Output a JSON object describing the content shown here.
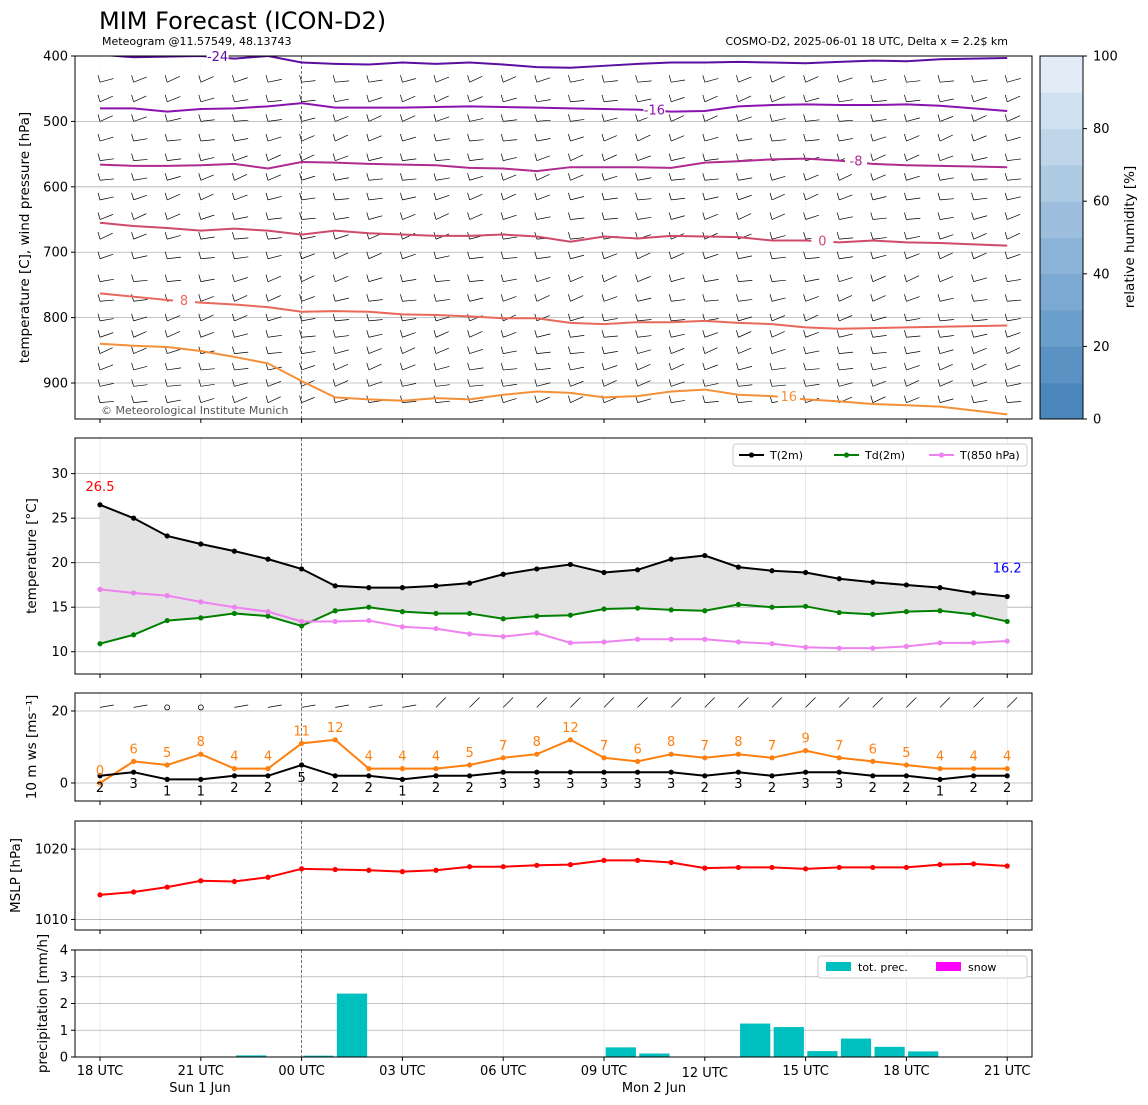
{
  "header": {
    "title": "MIM Forecast (ICON-D2)",
    "subtitle_left": "Meteogram @11.57549, 48.13743",
    "subtitle_right": "COSMO-D2, 2025-06-01 18 UTC, Delta x = 2.2$ km",
    "copyright": "© Meteorological Institute Munich"
  },
  "time_axis": {
    "tick_labels": [
      "18 UTC",
      "21 UTC",
      "00 UTC",
      "03 UTC",
      "06 UTC",
      "09 UTC",
      "12 UTC",
      "15 UTC",
      "18 UTC",
      "21 UTC"
    ],
    "date_labels": [
      "Sun 1 Jun",
      "Mon 2 Jun"
    ]
  },
  "chart_data": [
    {
      "type": "line",
      "panel": "upper-air",
      "ylabel": "temperature [C], wind pressure [hPa]",
      "yticks": [
        400,
        500,
        600,
        700,
        800,
        900
      ],
      "ylim": [
        955,
        400
      ],
      "colorbar": {
        "label": "relative humidity [%]",
        "ticks": [
          0,
          20,
          40,
          60,
          80,
          100
        ]
      },
      "isotherms": [
        {
          "label": "-24",
          "color": "#5a0fa0",
          "values": [
            398,
            402,
            401,
            400,
            404,
            400,
            410,
            412,
            413,
            410,
            412,
            410,
            413,
            417,
            418,
            415,
            412,
            410,
            410,
            409,
            410,
            411,
            409,
            407,
            408,
            405,
            404,
            403
          ]
        },
        {
          "label": "-16",
          "color": "#8a12b0",
          "values": [
            480,
            480,
            485,
            481,
            480,
            477,
            472,
            479,
            479,
            479,
            478,
            477,
            478,
            479,
            480,
            481,
            482,
            485,
            484,
            477,
            475,
            474,
            475,
            475,
            474,
            476,
            480,
            484
          ]
        },
        {
          "label": "-8",
          "color": "#b02b8f",
          "values": [
            566,
            568,
            568,
            567,
            565,
            572,
            562,
            563,
            565,
            566,
            567,
            571,
            572,
            576,
            570,
            570,
            570,
            571,
            563,
            561,
            558,
            557,
            560,
            565,
            567,
            568,
            569,
            570
          ]
        },
        {
          "label": "0",
          "color": "#cf4a6a",
          "values": [
            655,
            660,
            663,
            667,
            664,
            667,
            673,
            667,
            671,
            673,
            675,
            675,
            673,
            676,
            684,
            676,
            679,
            675,
            676,
            677,
            682,
            682,
            685,
            682,
            685,
            686,
            688,
            690
          ]
        },
        {
          "label": "8",
          "color": "#e8685a",
          "values": [
            763,
            768,
            773,
            777,
            780,
            784,
            791,
            790,
            791,
            795,
            796,
            798,
            801,
            801,
            808,
            810,
            807,
            807,
            805,
            808,
            810,
            815,
            817,
            816,
            815,
            814,
            813,
            812
          ]
        },
        {
          "label": "16",
          "color": "#f5903a",
          "values": [
            840,
            843,
            845,
            851,
            860,
            870,
            897,
            922,
            925,
            927,
            923,
            925,
            918,
            913,
            915,
            922,
            920,
            913,
            910,
            918,
            920,
            925,
            928,
            932,
            934,
            936,
            942,
            948
          ]
        }
      ]
    },
    {
      "type": "line",
      "panel": "temperature",
      "ylabel": "temperature [$^\\circ$C]",
      "ylim": [
        7.5,
        34
      ],
      "yticks": [
        10,
        15,
        20,
        25,
        30
      ],
      "annotations": {
        "max": "26.5",
        "min": "16.2"
      },
      "series": [
        {
          "name": "T(2m)",
          "color": "#000000",
          "values": [
            26.5,
            25.0,
            23.0,
            22.1,
            21.3,
            20.4,
            19.3,
            17.4,
            17.2,
            17.2,
            17.4,
            17.7,
            18.7,
            19.3,
            19.8,
            18.9,
            19.2,
            20.4,
            20.8,
            19.5,
            19.1,
            18.9,
            18.2,
            17.8,
            17.5,
            17.2,
            16.6,
            16.2
          ]
        },
        {
          "name": "Td(2m)",
          "color": "#008000",
          "values": [
            10.9,
            11.9,
            13.5,
            13.8,
            14.3,
            14.0,
            12.9,
            14.6,
            15.0,
            14.5,
            14.3,
            14.3,
            13.7,
            14.0,
            14.1,
            14.8,
            14.9,
            14.7,
            14.6,
            15.3,
            15.0,
            15.1,
            14.4,
            14.2,
            14.5,
            14.6,
            14.2,
            13.4
          ]
        },
        {
          "name": "T(850 hPa)",
          "color": "#ee82ee",
          "values": [
            17.0,
            16.6,
            16.3,
            15.6,
            15.0,
            14.5,
            13.4,
            13.4,
            13.5,
            12.8,
            12.6,
            12.0,
            11.7,
            12.1,
            11.0,
            11.1,
            11.4,
            11.4,
            11.4,
            11.1,
            10.9,
            10.5,
            10.4,
            10.4,
            10.6,
            11.0,
            11.0,
            11.2
          ]
        }
      ]
    },
    {
      "type": "line",
      "panel": "wind",
      "ylabel": "10 m ws [ms$^{-1}$]",
      "ylim": [
        -5,
        25
      ],
      "yticks": [
        0,
        20
      ],
      "series": [
        {
          "name": "gust",
          "color": "#ff7f0e",
          "values": [
            0,
            6,
            5,
            8,
            4,
            4,
            11,
            12,
            4,
            4,
            4,
            5,
            7,
            8,
            12,
            7,
            6,
            8,
            7,
            8,
            7,
            9,
            7,
            6,
            5,
            4,
            4,
            4
          ]
        },
        {
          "name": "mean",
          "color": "#000000",
          "values": [
            2,
            3,
            1,
            1,
            2,
            2,
            5,
            2,
            2,
            1,
            2,
            2,
            3,
            3,
            3,
            3,
            3,
            3,
            2,
            3,
            2,
            3,
            3,
            2,
            2,
            1,
            2,
            2
          ]
        }
      ],
      "gust_labels": [
        "0",
        "6",
        "5",
        "8",
        "4",
        "4",
        "11",
        "12",
        "4",
        "4",
        "4",
        "5",
        "7",
        "8",
        "12",
        "7",
        "6",
        "8",
        "7",
        "8",
        "7",
        "9",
        "7",
        "6",
        "5",
        "4",
        "4",
        "4"
      ],
      "mean_labels": [
        "2",
        "3",
        "1",
        "1",
        "2",
        "2",
        "5",
        "2",
        "2",
        "1",
        "2",
        "2",
        "3",
        "3",
        "3",
        "3",
        "3",
        "3",
        "2",
        "3",
        "2",
        "3",
        "3",
        "2",
        "2",
        "1",
        "2",
        "2"
      ]
    },
    {
      "type": "line",
      "panel": "mslp",
      "ylabel": "MSLP [hPa]",
      "ylim": [
        1008.5,
        1024
      ],
      "yticks": [
        1010,
        1020
      ],
      "series": [
        {
          "name": "MSLP",
          "color": "#ff0000",
          "values": [
            1013.5,
            1013.9,
            1014.6,
            1015.5,
            1015.4,
            1016.0,
            1017.2,
            1017.1,
            1017.0,
            1016.8,
            1017.0,
            1017.5,
            1017.5,
            1017.7,
            1017.8,
            1018.4,
            1018.4,
            1018.1,
            1017.3,
            1017.4,
            1017.4,
            1017.2,
            1017.4,
            1017.4,
            1017.4,
            1017.8,
            1017.9,
            1017.6
          ]
        }
      ]
    },
    {
      "type": "bar",
      "panel": "precipitation",
      "ylabel": "precipitation [mm/h]",
      "ylim": [
        0,
        4
      ],
      "yticks": [
        0,
        1,
        2,
        3,
        4
      ],
      "series": [
        {
          "name": "tot. prec.",
          "color": "#00bfbf",
          "values": [
            0,
            0,
            0,
            0.02,
            0.06,
            0.02,
            0.05,
            2.37,
            0,
            0,
            0,
            0,
            0,
            0,
            0.01,
            0.36,
            0.13,
            0,
            0.02,
            1.25,
            1.12,
            0.22,
            0.69,
            0.38,
            0.21,
            0,
            0,
            0
          ]
        },
        {
          "name": "snow",
          "color": "#ff00ff",
          "values": [
            0,
            0,
            0,
            0,
            0,
            0,
            0,
            0,
            0,
            0,
            0,
            0,
            0,
            0,
            0,
            0,
            0,
            0,
            0,
            0,
            0,
            0,
            0,
            0,
            0,
            0,
            0,
            0
          ]
        }
      ]
    }
  ]
}
